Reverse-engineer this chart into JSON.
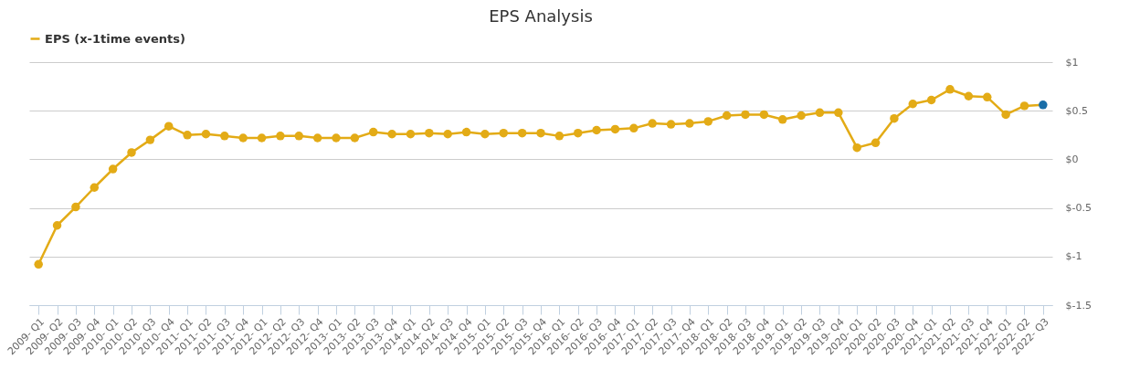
{
  "chart_data": {
    "type": "line",
    "title": "EPS Analysis",
    "categories": [
      "2009- Q1",
      "2009- Q2",
      "2009- Q3",
      "2009- Q4",
      "2010- Q1",
      "2010- Q2",
      "2010- Q3",
      "2010- Q4",
      "2011- Q1",
      "2011- Q2",
      "2011- Q3",
      "2011- Q4",
      "2012- Q1",
      "2012- Q2",
      "2012- Q3",
      "2012- Q4",
      "2013- Q1",
      "2013- Q2",
      "2013- Q3",
      "2013- Q4",
      "2014- Q1",
      "2014- Q2",
      "2014- Q3",
      "2014- Q4",
      "2015- Q1",
      "2015- Q2",
      "2015- Q3",
      "2015- Q4",
      "2016- Q1",
      "2016- Q2",
      "2016- Q3",
      "2016- Q4",
      "2017- Q1",
      "2017- Q2",
      "2017- Q3",
      "2017- Q4",
      "2018- Q1",
      "2018- Q2",
      "2018- Q3",
      "2018- Q4",
      "2019- Q1",
      "2019- Q2",
      "2019- Q3",
      "2019- Q4",
      "2020- Q1",
      "2020- Q2",
      "2020- Q3",
      "2020- Q4",
      "2021- Q1",
      "2021- Q2",
      "2021- Q3",
      "2021- Q4",
      "2022- Q1",
      "2022- Q2",
      "2022- Q3"
    ],
    "series": [
      {
        "name": "EPS (x-1time events)",
        "color": "#e3ab16",
        "colors": [
          "#e3ab16",
          "#e3ab16",
          "#e3ab16",
          "#e3ab16",
          "#e3ab16",
          "#e3ab16",
          "#e3ab16",
          "#e3ab16",
          "#e3ab16",
          "#e3ab16",
          "#e3ab16",
          "#e3ab16",
          "#e3ab16",
          "#e3ab16",
          "#e3ab16",
          "#e3ab16",
          "#e3ab16",
          "#e3ab16",
          "#e3ab16",
          "#e3ab16",
          "#e3ab16",
          "#e3ab16",
          "#e3ab16",
          "#e3ab16",
          "#e3ab16",
          "#e3ab16",
          "#e3ab16",
          "#e3ab16",
          "#e3ab16",
          "#e3ab16",
          "#e3ab16",
          "#e3ab16",
          "#e3ab16",
          "#e3ab16",
          "#e3ab16",
          "#e3ab16",
          "#e3ab16",
          "#e3ab16",
          "#e3ab16",
          "#e3ab16",
          "#e3ab16",
          "#e3ab16",
          "#e3ab16",
          "#e3ab16",
          "#e3ab16",
          "#e3ab16",
          "#e3ab16",
          "#e3ab16",
          "#e3ab16",
          "#e3ab16",
          "#e3ab16",
          "#e3ab16",
          "#e3ab16",
          "#e3ab16",
          "#1a6ea8"
        ],
        "values": [
          -1.08,
          -0.68,
          -0.49,
          -0.29,
          -0.1,
          0.07,
          0.2,
          0.34,
          0.25,
          0.26,
          0.24,
          0.22,
          0.22,
          0.24,
          0.24,
          0.22,
          0.22,
          0.22,
          0.28,
          0.26,
          0.26,
          0.27,
          0.26,
          0.28,
          0.26,
          0.27,
          0.27,
          0.27,
          0.24,
          0.27,
          0.3,
          0.31,
          0.32,
          0.37,
          0.36,
          0.37,
          0.39,
          0.45,
          0.46,
          0.46,
          0.41,
          0.45,
          0.48,
          0.48,
          0.12,
          0.17,
          0.42,
          0.57,
          0.61,
          0.72,
          0.65,
          0.64,
          0.46,
          0.55,
          0.56
        ]
      }
    ],
    "ylim": [
      -1.5,
      1
    ],
    "yticks": [
      {
        "value": -1.5,
        "label": "$-1.5"
      },
      {
        "value": -1,
        "label": "$-1"
      },
      {
        "value": -0.5,
        "label": "$-0.5"
      },
      {
        "value": 0,
        "label": "$0"
      },
      {
        "value": 0.5,
        "label": "$0.5"
      },
      {
        "value": 1,
        "label": "$1"
      }
    ],
    "grid": "y",
    "legend": "top",
    "marker": "circle",
    "line_style": "solid"
  }
}
